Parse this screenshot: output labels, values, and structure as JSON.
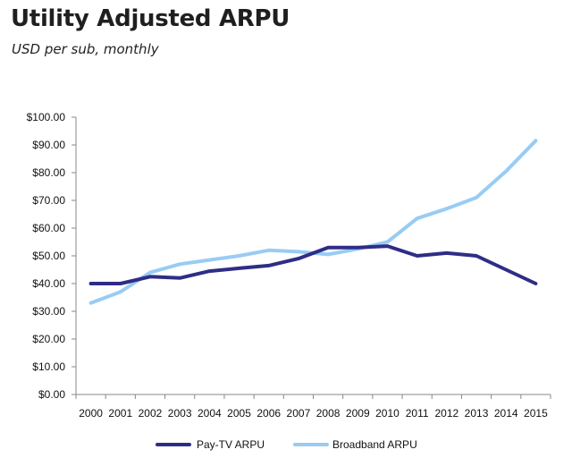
{
  "header": {
    "title": "Utility Adjusted ARPU",
    "subtitle": "USD per sub, monthly"
  },
  "chart_data": {
    "type": "line",
    "title": "Utility Adjusted ARPU",
    "subtitle": "USD per sub, monthly",
    "xlabel": "",
    "ylabel": "",
    "x": [
      "2000",
      "2001",
      "2002",
      "2003",
      "2004",
      "2005",
      "2006",
      "2007",
      "2008",
      "2009",
      "2010",
      "2011",
      "2012",
      "2013",
      "2014",
      "2015"
    ],
    "yticks": [
      "$0.00",
      "$10.00",
      "$20.00",
      "$30.00",
      "$40.00",
      "$50.00",
      "$60.00",
      "$70.00",
      "$80.00",
      "$90.00",
      "$100.00"
    ],
    "ylim": [
      0,
      100
    ],
    "grid": false,
    "legend_position": "bottom",
    "series": [
      {
        "name": "Pay-TV ARPU",
        "color": "#2e2d86",
        "values": [
          40,
          40,
          42.5,
          42,
          44.5,
          45.5,
          46.5,
          49,
          53,
          53,
          53.5,
          50,
          51,
          50,
          45,
          40
        ]
      },
      {
        "name": "Broadband ARPU",
        "color": "#99ccf3",
        "values": [
          33,
          37,
          44,
          47,
          48.5,
          50,
          52,
          51.5,
          50.5,
          52.5,
          55,
          63.5,
          67,
          71,
          80.5,
          91.5
        ]
      }
    ]
  }
}
